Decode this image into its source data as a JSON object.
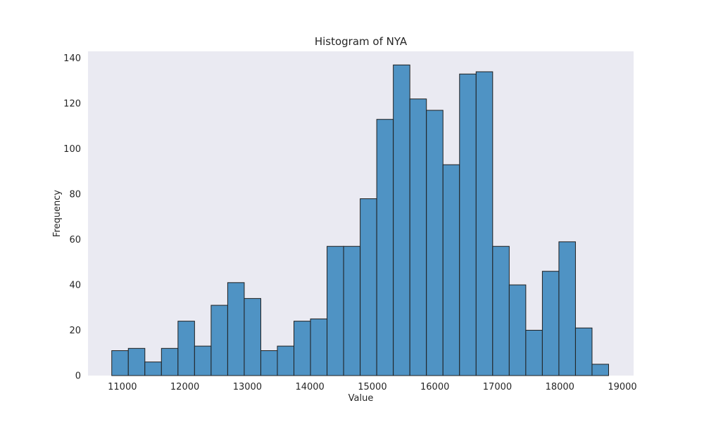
{
  "chart_data": {
    "type": "bar",
    "title": "Histogram of NYA",
    "xlabel": "Value",
    "ylabel": "Frequency",
    "grid": false,
    "xlim": [
      10450,
      19180
    ],
    "ylim": [
      0,
      143
    ],
    "x_ticks": [
      11000,
      12000,
      13000,
      14000,
      15000,
      16000,
      17000,
      18000,
      19000
    ],
    "y_ticks": [
      0,
      20,
      40,
      60,
      80,
      100,
      120,
      140
    ],
    "bin_start": 10830,
    "bin_width": 265,
    "values": [
      11,
      12,
      6,
      12,
      24,
      13,
      31,
      41,
      34,
      11,
      13,
      24,
      25,
      57,
      57,
      78,
      113,
      137,
      122,
      117,
      93,
      133,
      134,
      57,
      40,
      20,
      46,
      59,
      21,
      5
    ]
  }
}
